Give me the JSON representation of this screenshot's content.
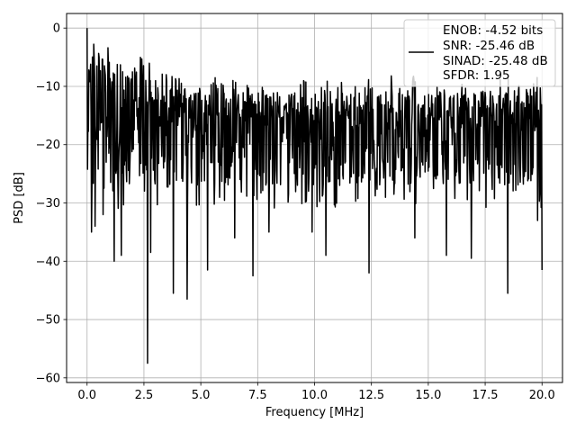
{
  "chart_data": {
    "type": "line",
    "title": "",
    "xlabel": "Frequency [MHz]",
    "ylabel": "PSD [dB]",
    "xlim": [
      -0.9,
      20.9
    ],
    "ylim": [
      -60.8,
      2.5
    ],
    "xticks": [
      0.0,
      2.5,
      5.0,
      7.5,
      10.0,
      12.5,
      15.0,
      17.5,
      20.0
    ],
    "xtick_labels": [
      "0.0",
      "2.5",
      "5.0",
      "7.5",
      "10.0",
      "12.5",
      "15.0",
      "17.5",
      "20.0"
    ],
    "yticks": [
      0,
      -10,
      -20,
      -30,
      -40,
      -50,
      -60
    ],
    "ytick_labels": [
      "0",
      "−10",
      "−20",
      "−30",
      "−40",
      "−50",
      "−60"
    ],
    "grid": true,
    "legend_position": "top-right",
    "legend_entries": [
      "ENOB: -4.52 bits",
      "SNR: -25.46 dB",
      "SINAD: -25.48 dB",
      "SFDR: 1.95"
    ],
    "series": [
      {
        "color": "#000000",
        "x_range": [
          0.0,
          20.0
        ],
        "num_points": 1024,
        "noise_floor_db": -19,
        "upper_envelope_db": [
          -3,
          -10
        ],
        "peaks": [
          {
            "x": 0.0,
            "y": 0.0
          }
        ],
        "notable_dips": [
          {
            "x": 0.2,
            "y": -35
          },
          {
            "x": 0.35,
            "y": -34
          },
          {
            "x": 0.7,
            "y": -32
          },
          {
            "x": 1.2,
            "y": -40
          },
          {
            "x": 1.5,
            "y": -39
          },
          {
            "x": 2.65,
            "y": -57.5
          },
          {
            "x": 2.8,
            "y": -38.5
          },
          {
            "x": 3.8,
            "y": -45.5
          },
          {
            "x": 4.4,
            "y": -46.5
          },
          {
            "x": 5.3,
            "y": -41.5
          },
          {
            "x": 6.5,
            "y": -36
          },
          {
            "x": 7.3,
            "y": -42.5
          },
          {
            "x": 8.0,
            "y": -35
          },
          {
            "x": 9.9,
            "y": -35
          },
          {
            "x": 10.5,
            "y": -39
          },
          {
            "x": 12.4,
            "y": -42
          },
          {
            "x": 14.4,
            "y": -36
          },
          {
            "x": 15.8,
            "y": -39
          },
          {
            "x": 16.9,
            "y": -39.5
          },
          {
            "x": 18.5,
            "y": -45.5
          },
          {
            "x": 19.8,
            "y": -33
          },
          {
            "x": 20.0,
            "y": -41.5
          }
        ]
      }
    ]
  }
}
